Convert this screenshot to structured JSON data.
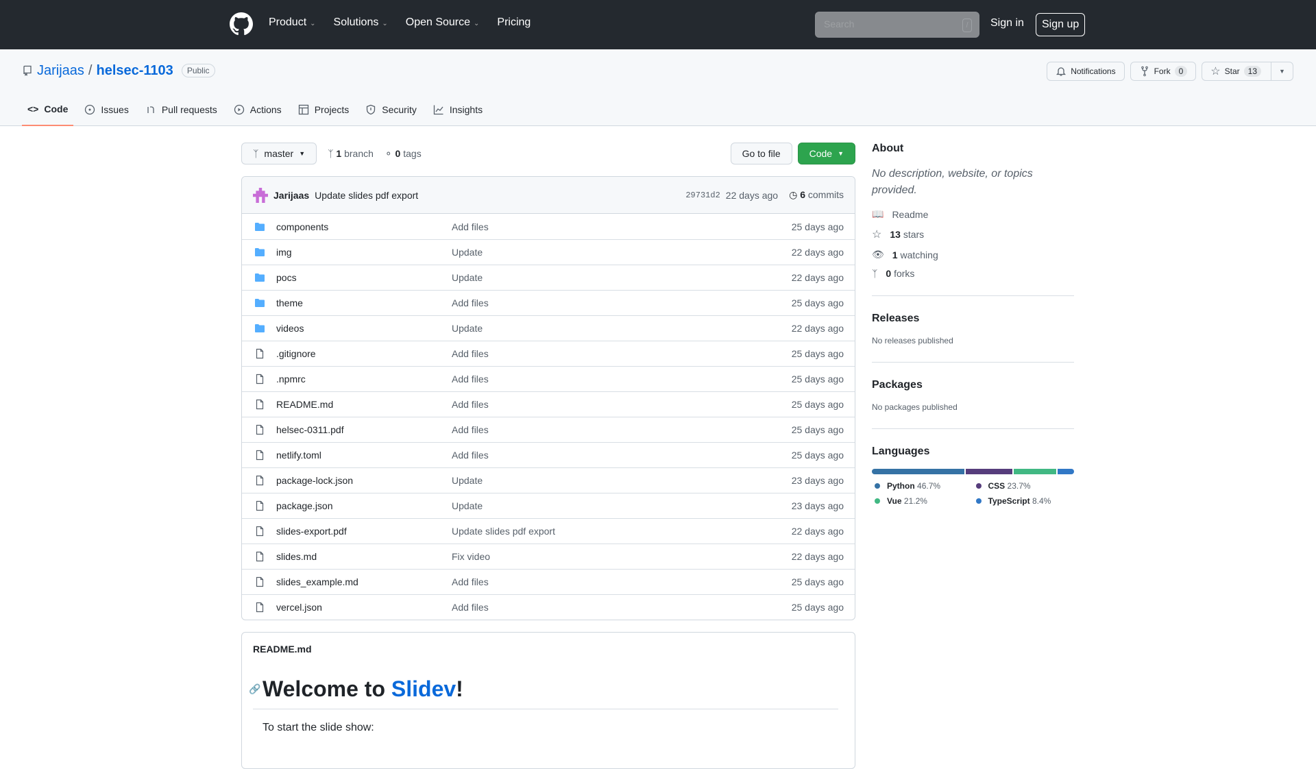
{
  "header": {
    "nav": [
      "Product",
      "Solutions",
      "Open Source",
      "Pricing"
    ],
    "search_placeholder": "Search",
    "search_key": "/",
    "signin": "Sign in",
    "signup": "Sign up"
  },
  "repo": {
    "owner": "Jarijaas",
    "name": "helsec-1103",
    "visibility": "Public",
    "notifications": "Notifications",
    "fork": "Fork",
    "fork_count": "0",
    "star": "Star",
    "star_count": "13"
  },
  "tabs": [
    "Code",
    "Issues",
    "Pull requests",
    "Actions",
    "Projects",
    "Security",
    "Insights"
  ],
  "toolbar": {
    "branch": "master",
    "branch_count": "1",
    "branch_label": "branch",
    "tag_count": "0",
    "tag_label": "tags",
    "go_to_file": "Go to file",
    "code": "Code"
  },
  "commit": {
    "author": "Jarijaas",
    "message": "Update slides pdf export",
    "sha": "29731d2",
    "age": "22 days ago",
    "count": "6",
    "count_label": "commits"
  },
  "files": [
    {
      "name": "components",
      "type": "dir",
      "msg": "Add files",
      "age": "25 days ago"
    },
    {
      "name": "img",
      "type": "dir",
      "msg": "Update",
      "age": "22 days ago"
    },
    {
      "name": "pocs",
      "type": "dir",
      "msg": "Update",
      "age": "22 days ago"
    },
    {
      "name": "theme",
      "type": "dir",
      "msg": "Add files",
      "age": "25 days ago"
    },
    {
      "name": "videos",
      "type": "dir",
      "msg": "Update",
      "age": "22 days ago"
    },
    {
      "name": ".gitignore",
      "type": "file",
      "msg": "Add files",
      "age": "25 days ago"
    },
    {
      "name": ".npmrc",
      "type": "file",
      "msg": "Add files",
      "age": "25 days ago"
    },
    {
      "name": "README.md",
      "type": "file",
      "msg": "Add files",
      "age": "25 days ago"
    },
    {
      "name": "helsec-0311.pdf",
      "type": "file",
      "msg": "Add files",
      "age": "25 days ago"
    },
    {
      "name": "netlify.toml",
      "type": "file",
      "msg": "Add files",
      "age": "25 days ago"
    },
    {
      "name": "package-lock.json",
      "type": "file",
      "msg": "Update",
      "age": "23 days ago"
    },
    {
      "name": "package.json",
      "type": "file",
      "msg": "Update",
      "age": "23 days ago"
    },
    {
      "name": "slides-export.pdf",
      "type": "file",
      "msg": "Update slides pdf export",
      "age": "22 days ago"
    },
    {
      "name": "slides.md",
      "type": "file",
      "msg": "Fix video",
      "age": "22 days ago"
    },
    {
      "name": "slides_example.md",
      "type": "file",
      "msg": "Add files",
      "age": "25 days ago"
    },
    {
      "name": "vercel.json",
      "type": "file",
      "msg": "Add files",
      "age": "25 days ago"
    }
  ],
  "readme": {
    "filename": "README.md",
    "heading_pre": "Welcome to ",
    "heading_link": "Slidev",
    "heading_post": "!",
    "text": "To start the slide show:"
  },
  "about": {
    "title": "About",
    "description": "No description, website, or topics provided.",
    "readme": "Readme",
    "stars_n": "13",
    "stars": "stars",
    "watching_n": "1",
    "watching": "watching",
    "forks_n": "0",
    "forks": "forks"
  },
  "releases": {
    "title": "Releases",
    "text": "No releases published"
  },
  "packages": {
    "title": "Packages",
    "text": "No packages published"
  },
  "languages": {
    "title": "Languages",
    "items": [
      {
        "name": "Python",
        "pct": "46.7%",
        "value": 46.7,
        "color": "#3572a5"
      },
      {
        "name": "CSS",
        "pct": "23.7%",
        "value": 23.7,
        "color": "#563d7c"
      },
      {
        "name": "Vue",
        "pct": "21.2%",
        "value": 21.2,
        "color": "#41b883"
      },
      {
        "name": "TypeScript",
        "pct": "8.4%",
        "value": 8.4,
        "color": "#3178c6"
      }
    ]
  }
}
